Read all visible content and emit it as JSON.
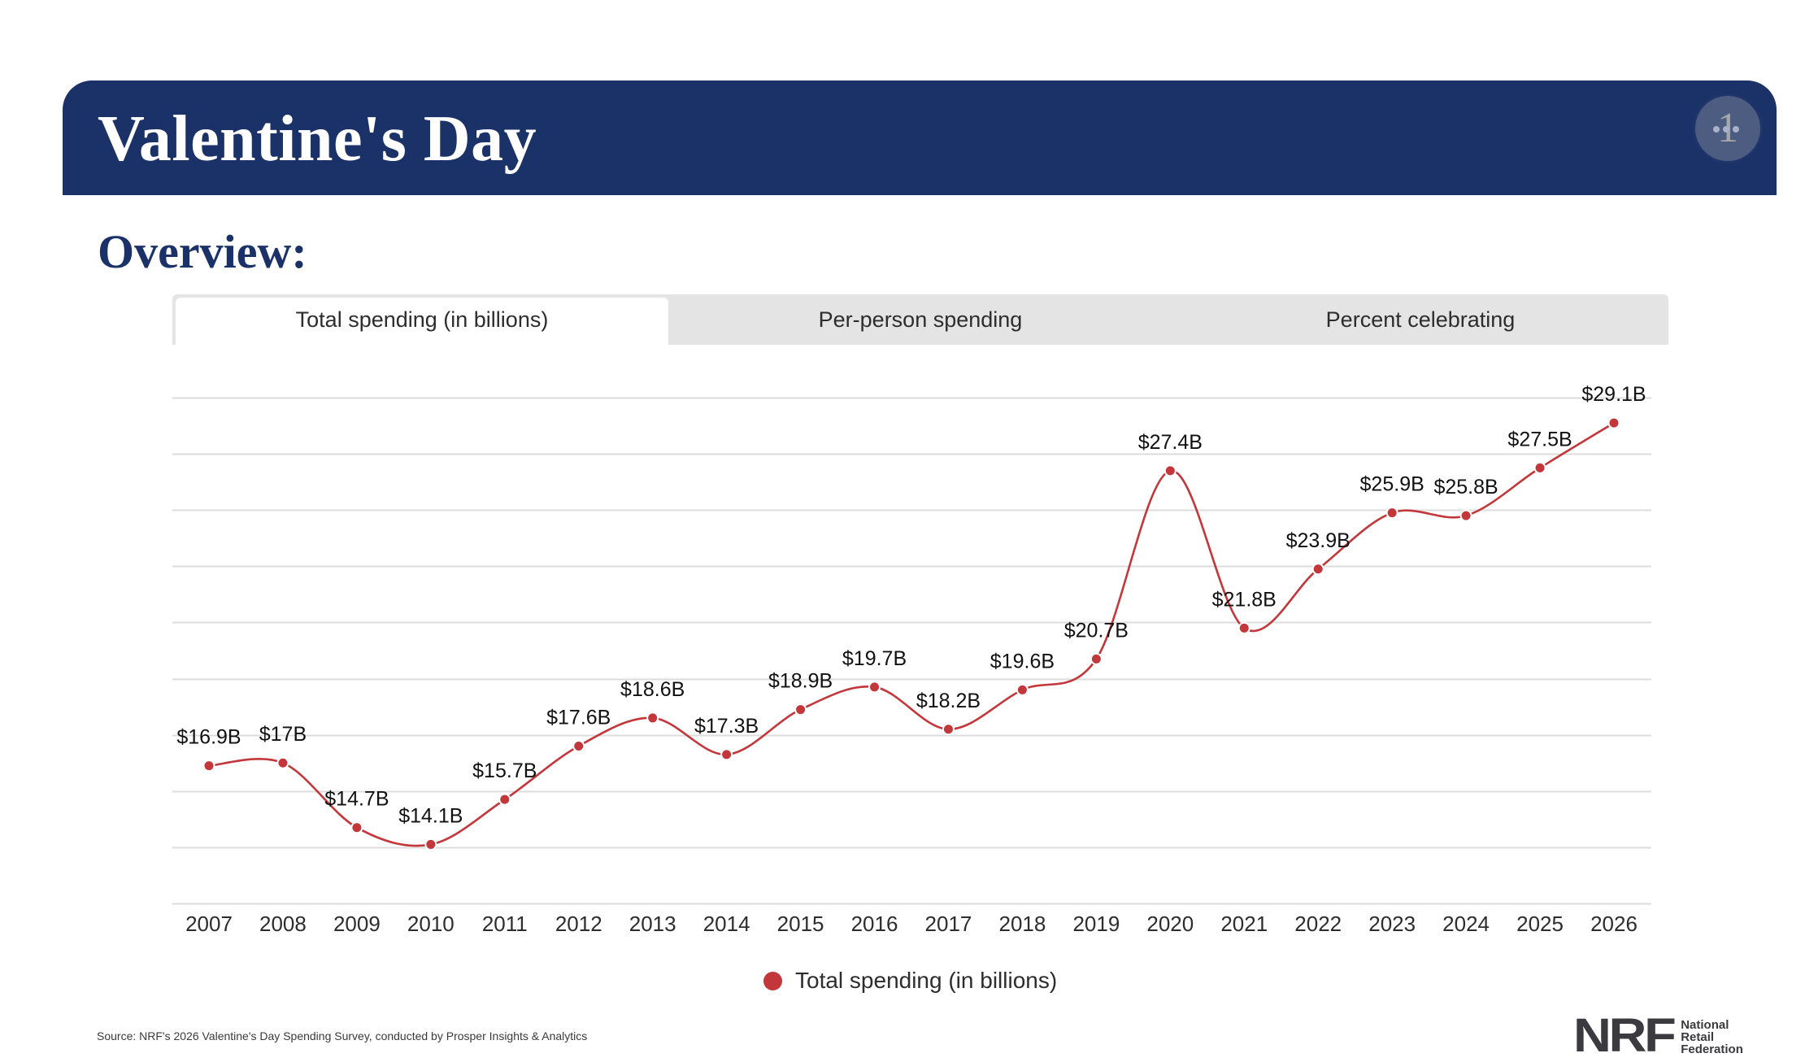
{
  "header": {
    "title": "Valentine's Day",
    "menu_button_glyph": "1",
    "menu_icon": "more-dots-icon"
  },
  "section": {
    "title": "Overview:"
  },
  "tabs": [
    {
      "label": "Total spending (in billions)",
      "active": true
    },
    {
      "label": "Per-person spending",
      "active": false
    },
    {
      "label": "Percent celebrating",
      "active": false
    }
  ],
  "colors": {
    "brand_navy": "#1b3268",
    "series_red": "#c3363a",
    "tab_bg": "#e4e4e4",
    "grid": "#dcdcdc"
  },
  "chart_data": {
    "type": "line",
    "title": "",
    "xlabel": "",
    "ylabel": "",
    "x": [
      "2007",
      "2008",
      "2009",
      "2010",
      "2011",
      "2012",
      "2013",
      "2014",
      "2015",
      "2016",
      "2017",
      "2018",
      "2019",
      "2020",
      "2021",
      "2022",
      "2023",
      "2024",
      "2025",
      "2026"
    ],
    "series": [
      {
        "name": "Total spending (in billions)",
        "values": [
          16.9,
          17.0,
          14.7,
          14.1,
          15.7,
          17.6,
          18.6,
          17.3,
          18.9,
          19.7,
          18.2,
          19.6,
          20.7,
          27.4,
          21.8,
          23.9,
          25.9,
          25.8,
          27.5,
          29.1
        ],
        "labels": [
          "$16.9B",
          "$17B",
          "$14.7B",
          "$14.1B",
          "$15.7B",
          "$17.6B",
          "$18.6B",
          "$17.3B",
          "$18.9B",
          "$19.7B",
          "$18.2B",
          "$19.6B",
          "$20.7B",
          "$27.4B",
          "$21.8B",
          "$23.9B",
          "$25.9B",
          "$25.8B",
          "$27.5B",
          "$29.1B"
        ],
        "color": "#c3363a",
        "smooth": true
      }
    ],
    "ylim": [
      12,
      30
    ],
    "ystep": 2,
    "y_tick_labels_visible": false,
    "grid": true,
    "legend": "bottom-center"
  },
  "legend": {
    "label": "Total spending (in billions)"
  },
  "footer": {
    "source": "Source: NRF's 2026 Valentine's Day Spending Survey, conducted by Prosper Insights & Analytics",
    "logo_mark": "NRF",
    "logo_lines": [
      "National",
      "Retail",
      "Federation"
    ]
  }
}
